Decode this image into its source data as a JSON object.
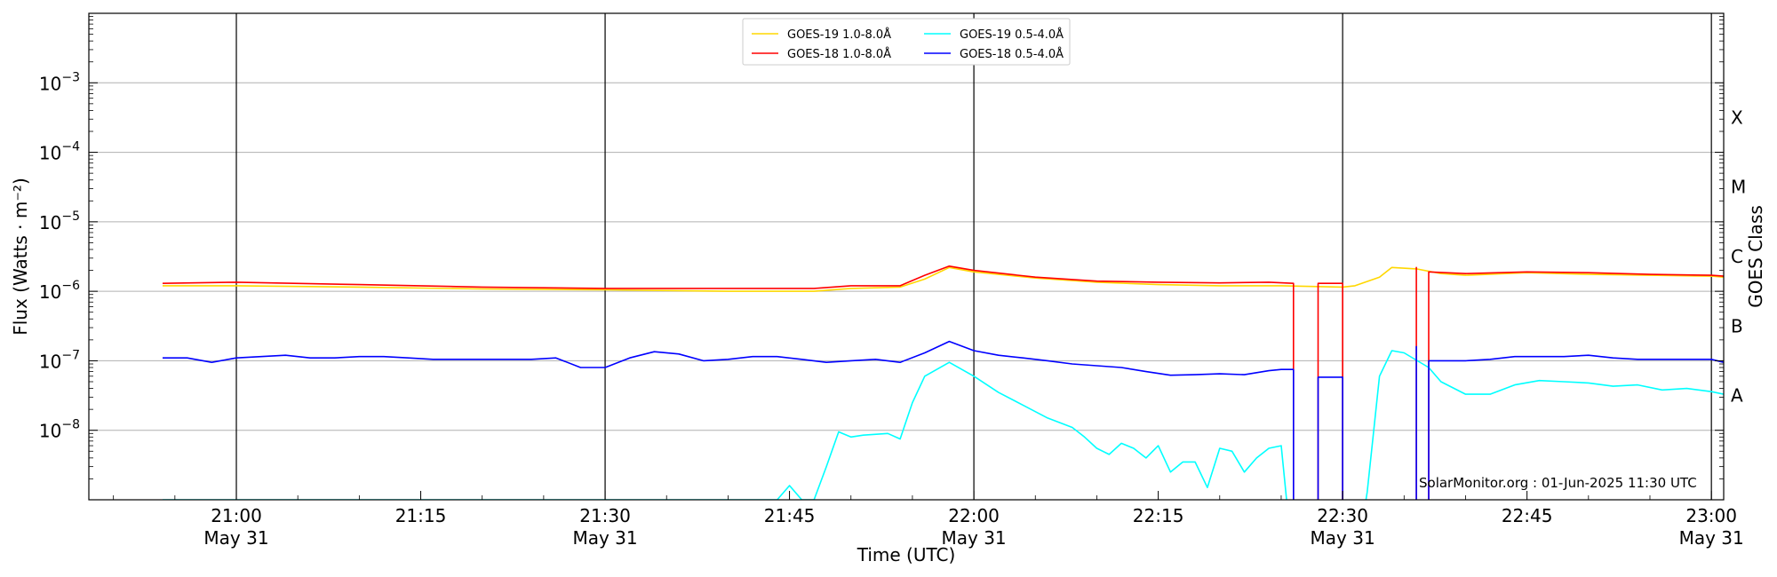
{
  "chart_data": {
    "type": "line",
    "ylabel": "Flux (Watts · m⁻²)",
    "ylabel_right": "GOES Class",
    "xlabel": "Time (UTC)",
    "yscale": "log",
    "ylim": [
      1e-09,
      0.01
    ],
    "xlim": [
      "2025-05-31 20:48",
      "2025-05-31 23:01"
    ],
    "y_ticks": [
      {
        "value": 1e-08,
        "base": "10",
        "exp": "−8"
      },
      {
        "value": 1e-07,
        "base": "10",
        "exp": "−7"
      },
      {
        "value": 1e-06,
        "base": "10",
        "exp": "−6"
      },
      {
        "value": 1e-05,
        "base": "10",
        "exp": "−5"
      },
      {
        "value": 0.0001,
        "base": "10",
        "exp": "−4"
      },
      {
        "value": 0.001,
        "base": "10",
        "exp": "−3"
      }
    ],
    "x_ticks": [
      {
        "time": "21:00",
        "label": "21:00",
        "sublabel": "May 31",
        "major": true
      },
      {
        "time": "21:15",
        "label": "21:15",
        "sublabel": "",
        "major": false
      },
      {
        "time": "21:30",
        "label": "21:30",
        "sublabel": "May 31",
        "major": true
      },
      {
        "time": "21:45",
        "label": "21:45",
        "sublabel": "",
        "major": false
      },
      {
        "time": "22:00",
        "label": "22:00",
        "sublabel": "May 31",
        "major": true
      },
      {
        "time": "22:15",
        "label": "22:15",
        "sublabel": "",
        "major": false
      },
      {
        "time": "22:30",
        "label": "22:30",
        "sublabel": "May 31",
        "major": true
      },
      {
        "time": "22:45",
        "label": "22:45",
        "sublabel": "",
        "major": false
      },
      {
        "time": "23:00",
        "label": "23:00",
        "sublabel": "May 31",
        "major": true
      }
    ],
    "goes_classes": [
      {
        "label": "A",
        "value": 3.16e-08
      },
      {
        "label": "B",
        "value": 3.16e-07
      },
      {
        "label": "C",
        "value": 3.16e-06
      },
      {
        "label": "M",
        "value": 3.16e-05
      },
      {
        "label": "X",
        "value": 0.000316
      }
    ],
    "grid": true,
    "legend_position": "top-center",
    "annotation": "SolarMonitor.org : 01-Jun-2025 11:30 UTC",
    "series": [
      {
        "name": "GOES-19 1.0-8.0Å",
        "color": "#ffd700",
        "points": [
          [
            "20:54",
            1.2e-06
          ],
          [
            "21:00",
            1.2e-06
          ],
          [
            "21:10",
            1.15e-06
          ],
          [
            "21:20",
            1.08e-06
          ],
          [
            "21:30",
            1.05e-06
          ],
          [
            "21:40",
            1e-06
          ],
          [
            "21:47",
            1e-06
          ],
          [
            "21:50",
            1.1e-06
          ],
          [
            "21:54",
            1.15e-06
          ],
          [
            "21:56",
            1.5e-06
          ],
          [
            "21:58",
            2.2e-06
          ],
          [
            "22:00",
            1.9e-06
          ],
          [
            "22:05",
            1.55e-06
          ],
          [
            "22:10",
            1.35e-06
          ],
          [
            "22:15",
            1.25e-06
          ],
          [
            "22:20",
            1.2e-06
          ],
          [
            "22:25",
            1.2e-06
          ],
          [
            "22:30",
            1.15e-06
          ],
          [
            "22:31",
            1.2e-06
          ],
          [
            "22:33",
            1.6e-06
          ],
          [
            "22:34",
            2.2e-06
          ],
          [
            "22:36",
            2.1e-06
          ],
          [
            "22:38",
            1.8e-06
          ],
          [
            "22:40",
            1.7e-06
          ],
          [
            "22:45",
            1.85e-06
          ],
          [
            "22:50",
            1.75e-06
          ],
          [
            "22:55",
            1.7e-06
          ],
          [
            "23:00",
            1.65e-06
          ],
          [
            "23:01",
            1.6e-06
          ]
        ]
      },
      {
        "name": "GOES-18 1.0-8.0Å",
        "color": "#ff0000",
        "points": [
          [
            "20:54",
            1.3e-06
          ],
          [
            "21:00",
            1.35e-06
          ],
          [
            "21:10",
            1.25e-06
          ],
          [
            "21:20",
            1.15e-06
          ],
          [
            "21:30",
            1.1e-06
          ],
          [
            "21:40",
            1.1e-06
          ],
          [
            "21:47",
            1.1e-06
          ],
          [
            "21:50",
            1.2e-06
          ],
          [
            "21:54",
            1.2e-06
          ],
          [
            "21:56",
            1.7e-06
          ],
          [
            "21:58",
            2.3e-06
          ],
          [
            "22:00",
            2e-06
          ],
          [
            "22:05",
            1.6e-06
          ],
          [
            "22:10",
            1.4e-06
          ],
          [
            "22:15",
            1.35e-06
          ],
          [
            "22:20",
            1.32e-06
          ],
          [
            "22:24",
            1.35e-06
          ],
          [
            "22:26",
            1.3e-06
          ],
          [
            "22:26",
            1e-10
          ],
          [
            "22:28",
            1e-10
          ],
          [
            "22:28",
            1.3e-06
          ],
          [
            "22:30",
            1.3e-06
          ],
          [
            "22:30",
            1e-10
          ],
          [
            "22:36",
            1e-10
          ],
          [
            "22:36",
            2.2e-06
          ],
          [
            "22:36",
            1e-10
          ],
          [
            "22:37",
            1e-10
          ],
          [
            "22:37",
            1.9e-06
          ],
          [
            "22:40",
            1.8e-06
          ],
          [
            "22:45",
            1.9e-06
          ],
          [
            "22:50",
            1.85e-06
          ],
          [
            "22:55",
            1.75e-06
          ],
          [
            "23:00",
            1.7e-06
          ],
          [
            "23:01",
            1.65e-06
          ]
        ]
      },
      {
        "name": "GOES-19 0.5-4.0Å",
        "color": "#00ffff",
        "points": [
          [
            "20:54",
            1e-09
          ],
          [
            "21:44",
            1e-09
          ],
          [
            "21:45",
            1.6e-09
          ],
          [
            "21:46",
            1e-09
          ],
          [
            "21:47",
            1e-09
          ],
          [
            "21:48",
            3e-09
          ],
          [
            "21:49",
            9.5e-09
          ],
          [
            "21:50",
            8e-09
          ],
          [
            "21:51",
            8.5e-09
          ],
          [
            "21:53",
            9e-09
          ],
          [
            "21:54",
            7.5e-09
          ],
          [
            "21:55",
            2.5e-08
          ],
          [
            "21:56",
            6e-08
          ],
          [
            "21:58",
            9.5e-08
          ],
          [
            "22:00",
            6e-08
          ],
          [
            "22:02",
            3.5e-08
          ],
          [
            "22:04",
            2.3e-08
          ],
          [
            "22:06",
            1.5e-08
          ],
          [
            "22:08",
            1.1e-08
          ],
          [
            "22:09",
            8e-09
          ],
          [
            "22:10",
            5.5e-09
          ],
          [
            "22:11",
            4.5e-09
          ],
          [
            "22:12",
            6.5e-09
          ],
          [
            "22:13",
            5.5e-09
          ],
          [
            "22:14",
            4e-09
          ],
          [
            "22:15",
            6e-09
          ],
          [
            "22:16",
            2.5e-09
          ],
          [
            "22:17",
            3.5e-09
          ],
          [
            "22:18",
            3.5e-09
          ],
          [
            "22:19",
            1.5e-09
          ],
          [
            "22:20",
            5.5e-09
          ],
          [
            "22:21",
            5e-09
          ],
          [
            "22:22",
            2.5e-09
          ],
          [
            "22:23",
            4e-09
          ],
          [
            "22:24",
            5.5e-09
          ],
          [
            "22:25",
            6e-09
          ],
          [
            "22:26",
            1e-10
          ],
          [
            "22:31",
            1e-10
          ],
          [
            "22:32",
            1.3e-09
          ],
          [
            "22:33",
            6e-08
          ],
          [
            "22:34",
            1.4e-07
          ],
          [
            "22:35",
            1.3e-07
          ],
          [
            "22:37",
            8e-08
          ],
          [
            "22:38",
            5e-08
          ],
          [
            "22:40",
            3.3e-08
          ],
          [
            "22:42",
            3.3e-08
          ],
          [
            "22:44",
            4.5e-08
          ],
          [
            "22:46",
            5.2e-08
          ],
          [
            "22:48",
            5e-08
          ],
          [
            "22:50",
            4.8e-08
          ],
          [
            "22:52",
            4.3e-08
          ],
          [
            "22:54",
            4.5e-08
          ],
          [
            "22:56",
            3.8e-08
          ],
          [
            "22:58",
            4e-08
          ],
          [
            "23:00",
            3.6e-08
          ],
          [
            "23:01",
            3.3e-08
          ]
        ]
      },
      {
        "name": "GOES-18 0.5-4.0Å",
        "color": "#0000ff",
        "points": [
          [
            "20:54",
            1.1e-07
          ],
          [
            "20:56",
            1.1e-07
          ],
          [
            "20:58",
            9.5e-08
          ],
          [
            "21:00",
            1.1e-07
          ],
          [
            "21:02",
            1.15e-07
          ],
          [
            "21:04",
            1.2e-07
          ],
          [
            "21:06",
            1.1e-07
          ],
          [
            "21:08",
            1.1e-07
          ],
          [
            "21:10",
            1.15e-07
          ],
          [
            "21:12",
            1.15e-07
          ],
          [
            "21:14",
            1.1e-07
          ],
          [
            "21:16",
            1.05e-07
          ],
          [
            "21:18",
            1.05e-07
          ],
          [
            "21:20",
            1.05e-07
          ],
          [
            "21:22",
            1.05e-07
          ],
          [
            "21:24",
            1.05e-07
          ],
          [
            "21:26",
            1.1e-07
          ],
          [
            "21:28",
            8e-08
          ],
          [
            "21:30",
            8e-08
          ],
          [
            "21:32",
            1.1e-07
          ],
          [
            "21:34",
            1.35e-07
          ],
          [
            "21:36",
            1.25e-07
          ],
          [
            "21:38",
            1e-07
          ],
          [
            "21:40",
            1.05e-07
          ],
          [
            "21:42",
            1.15e-07
          ],
          [
            "21:44",
            1.15e-07
          ],
          [
            "21:46",
            1.05e-07
          ],
          [
            "21:48",
            9.5e-08
          ],
          [
            "21:50",
            1e-07
          ],
          [
            "21:52",
            1.05e-07
          ],
          [
            "21:54",
            9.5e-08
          ],
          [
            "21:56",
            1.3e-07
          ],
          [
            "21:58",
            1.9e-07
          ],
          [
            "22:00",
            1.4e-07
          ],
          [
            "22:02",
            1.2e-07
          ],
          [
            "22:04",
            1.1e-07
          ],
          [
            "22:06",
            1e-07
          ],
          [
            "22:08",
            9e-08
          ],
          [
            "22:10",
            8.5e-08
          ],
          [
            "22:12",
            8e-08
          ],
          [
            "22:14",
            7e-08
          ],
          [
            "22:16",
            6.2e-08
          ],
          [
            "22:18",
            6.3e-08
          ],
          [
            "22:20",
            6.5e-08
          ],
          [
            "22:22",
            6.3e-08
          ],
          [
            "22:24",
            7.2e-08
          ],
          [
            "22:25",
            7.5e-08
          ],
          [
            "22:26",
            7.5e-08
          ],
          [
            "22:26",
            1e-10
          ],
          [
            "22:28",
            1e-10
          ],
          [
            "22:28",
            5.8e-08
          ],
          [
            "22:30",
            5.8e-08
          ],
          [
            "22:30",
            1e-10
          ],
          [
            "22:36",
            1e-10
          ],
          [
            "22:36",
            1.6e-07
          ],
          [
            "22:36",
            1e-10
          ],
          [
            "22:37",
            1e-10
          ],
          [
            "22:37",
            1e-07
          ],
          [
            "22:40",
            1e-07
          ],
          [
            "22:42",
            1.05e-07
          ],
          [
            "22:44",
            1.15e-07
          ],
          [
            "22:46",
            1.15e-07
          ],
          [
            "22:48",
            1.15e-07
          ],
          [
            "22:50",
            1.2e-07
          ],
          [
            "22:52",
            1.1e-07
          ],
          [
            "22:54",
            1.05e-07
          ],
          [
            "22:56",
            1.05e-07
          ],
          [
            "22:58",
            1.05e-07
          ],
          [
            "23:00",
            1.05e-07
          ],
          [
            "23:01",
            9.5e-08
          ]
        ]
      }
    ]
  }
}
